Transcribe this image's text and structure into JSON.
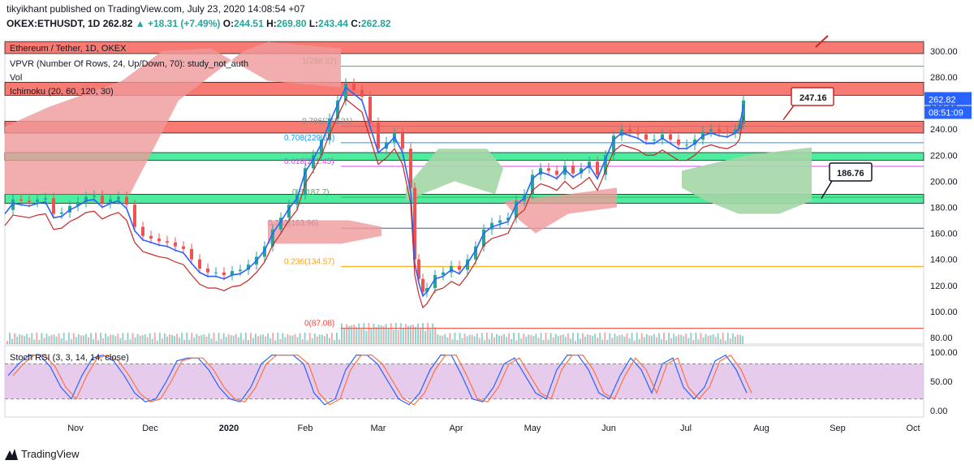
{
  "header": {
    "line1": "tikyikhant published on TradingView.com, July 23, 2020 14:08:54 +07",
    "symbol": "OKEX:ETHUSDT, 1D",
    "last": "262.82",
    "change": "+18.31 (+7.49%)",
    "o_label": "O:",
    "o": "244.51",
    "h_label": "H:",
    "h": "269.80",
    "l_label": "L:",
    "l": "243.44",
    "c_label": "C:",
    "c": "262.82"
  },
  "legend": {
    "title": "Ethereum / Tether, 1D, OKEX",
    "vpvr": "VPVR (Number Of Rows, 24, Up/Down, 70): study_not_auth",
    "vol": "Vol",
    "ichimoku": "Ichimoku (20, 60, 120, 30)",
    "stoch": "Stoch RSI (3, 3, 14, 14, close)"
  },
  "footer": {
    "brand": "TradingView"
  },
  "colors": {
    "up": "#26a69a",
    "down": "#ef5350",
    "price": "#2962ff",
    "fib_bg": "#e0e0e0",
    "green_zone": "#00e676",
    "red_zone": "#f44336",
    "cloud_green": "#a5d6a7",
    "cloud_red": "#ef9a9a",
    "stoch_bg": "#e1bee7"
  },
  "chart_data": {
    "type": "candlestick",
    "title": "Ethereum / Tether, 1D, OKEX",
    "price_ticks": [
      "300.00",
      "280.00",
      "260.00",
      "240.00",
      "220.00",
      "200.00",
      "180.00",
      "160.00",
      "140.00",
      "120.00",
      "100.00",
      "80.00"
    ],
    "stoch_ticks": [
      "100.00",
      "50.00",
      "0.00"
    ],
    "x_ticks": [
      "Nov",
      "Dec",
      "2020",
      "Feb",
      "Mar",
      "Apr",
      "May",
      "Jun",
      "Jul",
      "Aug",
      "Sep",
      "Oct"
    ],
    "ylim": [
      75,
      308
    ],
    "fib_levels": [
      {
        "label": "1(288.32)",
        "value": 288.32,
        "color": "#4caf50"
      },
      {
        "label": "0.786(242.21)",
        "value": 242.21,
        "color": "#888888"
      },
      {
        "label": "0.708(229.61)",
        "value": 229.61,
        "color": "#2196f3"
      },
      {
        "label": "0.618(211.45)",
        "value": 211.45,
        "color": "#e040fb"
      },
      {
        "label": "0.5(187.7)",
        "value": 187.7,
        "color": "#4caf50"
      },
      {
        "label": "0.382(163.96)",
        "value": 163.96,
        "color": "#3f51b5"
      },
      {
        "label": "0.236(134.57)",
        "value": 134.57,
        "color": "#ffa000"
      },
      {
        "label": "0(87.08)",
        "value": 87.08,
        "color": "#f44336"
      }
    ],
    "zones": [
      {
        "color": "red",
        "from": 298,
        "to": 307
      },
      {
        "color": "red",
        "from": 266,
        "to": 276
      },
      {
        "color": "red",
        "from": 237,
        "to": 246
      },
      {
        "color": "green",
        "from": 216,
        "to": 222
      },
      {
        "color": "green",
        "from": 183,
        "to": 190
      }
    ],
    "annotations": [
      {
        "label": "247.16",
        "value": 247.16
      },
      {
        "label": "186.76",
        "value": 186.76
      }
    ],
    "last_price": "262.82",
    "countdown": "08:51:09",
    "close_series": [
      [
        0,
        178
      ],
      [
        10,
        186
      ],
      [
        20,
        185
      ],
      [
        30,
        184
      ],
      [
        40,
        186
      ],
      [
        50,
        187
      ],
      [
        60,
        175
      ],
      [
        70,
        176
      ],
      [
        80,
        181
      ],
      [
        90,
        184
      ],
      [
        100,
        188
      ],
      [
        110,
        189
      ],
      [
        120,
        183
      ],
      [
        130,
        186
      ],
      [
        140,
        188
      ],
      [
        150,
        182
      ],
      [
        160,
        165
      ],
      [
        170,
        158
      ],
      [
        180,
        156
      ],
      [
        190,
        154
      ],
      [
        200,
        153
      ],
      [
        210,
        150
      ],
      [
        220,
        148
      ],
      [
        230,
        140
      ],
      [
        240,
        133
      ],
      [
        250,
        130
      ],
      [
        260,
        130
      ],
      [
        270,
        128
      ],
      [
        280,
        131
      ],
      [
        290,
        132
      ],
      [
        300,
        136
      ],
      [
        310,
        142
      ],
      [
        320,
        150
      ],
      [
        330,
        163
      ],
      [
        340,
        172
      ],
      [
        350,
        182
      ],
      [
        360,
        190
      ],
      [
        370,
        210
      ],
      [
        380,
        220
      ],
      [
        390,
        232
      ],
      [
        400,
        248
      ],
      [
        410,
        262
      ],
      [
        420,
        275
      ],
      [
        430,
        270
      ],
      [
        440,
        265
      ],
      [
        450,
        245
      ],
      [
        460,
        225
      ],
      [
        470,
        230
      ],
      [
        480,
        237
      ],
      [
        490,
        225
      ],
      [
        500,
        195
      ],
      [
        505,
        140
      ],
      [
        510,
        125
      ],
      [
        515,
        115
      ],
      [
        520,
        118
      ],
      [
        530,
        128
      ],
      [
        540,
        130
      ],
      [
        550,
        135
      ],
      [
        560,
        132
      ],
      [
        570,
        140
      ],
      [
        580,
        150
      ],
      [
        590,
        163
      ],
      [
        600,
        168
      ],
      [
        610,
        170
      ],
      [
        620,
        172
      ],
      [
        630,
        185
      ],
      [
        640,
        190
      ],
      [
        650,
        205
      ],
      [
        660,
        210
      ],
      [
        670,
        208
      ],
      [
        680,
        205
      ],
      [
        690,
        212
      ],
      [
        700,
        206
      ],
      [
        710,
        210
      ],
      [
        720,
        215
      ],
      [
        730,
        205
      ],
      [
        740,
        220
      ],
      [
        750,
        235
      ],
      [
        760,
        240
      ],
      [
        770,
        238
      ],
      [
        780,
        236
      ],
      [
        790,
        232
      ],
      [
        800,
        232
      ],
      [
        810,
        236
      ],
      [
        820,
        232
      ],
      [
        830,
        228
      ],
      [
        840,
        228
      ],
      [
        850,
        232
      ],
      [
        860,
        238
      ],
      [
        870,
        240
      ],
      [
        880,
        238
      ],
      [
        890,
        237
      ],
      [
        900,
        240
      ],
      [
        905,
        244
      ],
      [
        910,
        262
      ]
    ],
    "stoch_k": [
      60,
      80,
      95,
      95,
      75,
      40,
      20,
      60,
      90,
      95,
      85,
      60,
      30,
      15,
      20,
      50,
      85,
      90,
      90,
      70,
      40,
      20,
      15,
      40,
      80,
      95,
      95,
      95,
      80,
      30,
      10,
      20,
      70,
      95,
      95,
      80,
      50,
      20,
      10,
      30,
      70,
      95,
      95,
      60,
      20,
      15,
      40,
      80,
      90,
      60,
      30,
      20,
      70,
      95,
      95,
      70,
      30,
      20,
      60,
      90,
      70,
      30,
      80,
      90,
      40,
      20,
      40,
      85,
      95,
      70,
      30
    ]
  }
}
